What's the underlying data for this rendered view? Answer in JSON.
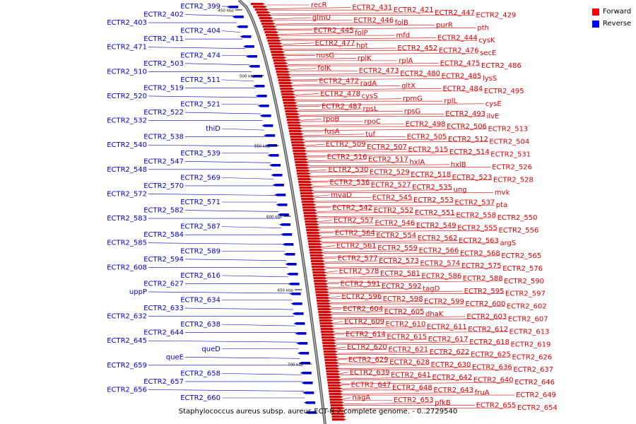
{
  "legend": [
    {
      "label": "Forward",
      "color": "#ff0000"
    },
    {
      "label": "Reverse",
      "color": "#0000ff"
    }
  ],
  "colors": {
    "forward": "#dd0000",
    "reverse": "#0000cc",
    "backbone": "#888888"
  },
  "caption": "Staphylococcus aureus subsp. aureus ECT-R 2 complete genome. - 0..2729540",
  "scale_marks": [
    "450 kbp",
    "500 kbp",
    "550 kbp",
    "600 kbp",
    "650 kbp",
    "700 kbp"
  ],
  "forward_labels": [
    "recR",
    "ECTR2_431",
    "ECTR2_421",
    "ECTR2_447",
    "ECTR2_429",
    "glmU",
    "ECTR2_446",
    "folB",
    "purR",
    "pth",
    "ECTR2_445",
    "folP",
    "mfd",
    "ECTR2_444",
    "cysK",
    "ECTR2_477",
    "hpt",
    "ECTR2_452",
    "ECTR2_476",
    "secE",
    "nusG",
    "rplK",
    "rplA",
    "ECTR2_475",
    "ECTR2_486",
    "folK",
    "ECTR2_473",
    "ECTR2_480",
    "ECTR2_485",
    "lysS",
    "ECTR2_472",
    "radA",
    "gltX",
    "ECTR2_484",
    "ECTR2_495",
    "ECTR2_478",
    "cysS",
    "rpmG",
    "rplL",
    "cysE",
    "ECTR2_487",
    "rpsL",
    "rpsG",
    "ECTR2_493",
    "ilvE",
    "rpoB",
    "rpoC",
    "ECTR2_498",
    "ECTR2_506",
    "ECTR2_513",
    "fusA",
    "tuf",
    "ECTR2_505",
    "ECTR2_512",
    "ECTR2_504",
    "ECTR2_509",
    "ECTR2_507",
    "ECTR2_515",
    "ECTR2_514",
    "ECTR2_531",
    "ECTR2_516",
    "ECTR2_517",
    "hxlA",
    "hxlB",
    "ECTR2_526",
    "ECTR2_530",
    "ECTR2_529",
    "ECTR2_518",
    "ECTR2_523",
    "ECTR2_528",
    "ECTR2_536",
    "ECTR2_527",
    "ECTR2_535",
    "ung",
    "mvk",
    "mvaD",
    "ECTR2_545",
    "ECTR2_553",
    "ECTR2_537",
    "pta",
    "ECTR2_542",
    "ECTR2_552",
    "ECTR2_551",
    "ECTR2_558",
    "ECTR2_550",
    "ECTR2_557",
    "ECTR2_546",
    "ECTR2_549",
    "ECTR2_555",
    "ECTR2_556",
    "ECTR2_564",
    "ECTR2_554",
    "ECTR2_562",
    "ECTR2_563",
    "argS",
    "ECTR2_561",
    "ECTR2_559",
    "ECTR2_566",
    "ECTR2_568",
    "ECTR2_565",
    "ECTR2_577",
    "ECTR2_573",
    "ECTR2_574",
    "ECTR2_575",
    "ECTR2_576",
    "ECTR2_578",
    "ECTR2_581",
    "ECTR2_586",
    "ECTR2_588",
    "ECTR2_590",
    "ECTR2_591",
    "ECTR2_592",
    "tagD",
    "ECTR2_595",
    "ECTR2_597",
    "ECTR2_596",
    "ECTR2_598",
    "ECTR2_599",
    "ECTR2_600",
    "ECTR2_602",
    "ECTR2_604",
    "ECTR2_605",
    "dhaK",
    "ECTR2_603",
    "ECTR2_607",
    "ECTR2_609",
    "ECTR2_610",
    "ECTR2_611",
    "ECTR2_612",
    "ECTR2_613",
    "ECTR2_614",
    "ECTR2_615",
    "ECTR2_617",
    "ECTR2_618",
    "ECTR2_619",
    "ECTR2_620",
    "ECTR2_621",
    "ECTR2_622",
    "ECTR2_625",
    "ECTR2_626",
    "ECTR2_629",
    "ECTR2_628",
    "ECTR2_630",
    "ECTR2_636",
    "ECTR2_637",
    "ECTR2_639",
    "ECTR2_641",
    "ECTR2_642",
    "ECTR2_640",
    "ECTR2_646",
    "ECTR2_647",
    "ECTR2_648",
    "ECTR2_643",
    "fruA",
    "ECTR2_649",
    "nagA",
    "ECTR2_653",
    "pfkB",
    "ECTR2_655",
    "ECTR2_654"
  ],
  "reverse_labels": [
    "ECTR2_399",
    "ECTR2_402",
    "ECTR2_403",
    "ECTR2_404",
    "ECTR2_411",
    "ECTR2_471",
    "ECTR2_474",
    "ECTR2_503",
    "ECTR2_510",
    "ECTR2_511",
    "ECTR2_519",
    "ECTR2_520",
    "ECTR2_521",
    "ECTR2_522",
    "ECTR2_532",
    "thiD",
    "ECTR2_538",
    "ECTR2_540",
    "ECTR2_539",
    "ECTR2_547",
    "ECTR2_548",
    "ECTR2_569",
    "ECTR2_570",
    "ECTR2_572",
    "ECTR2_571",
    "ECTR2_582",
    "ECTR2_583",
    "ECTR2_587",
    "ECTR2_584",
    "ECTR2_585",
    "ECTR2_589",
    "ECTR2_594",
    "ECTR2_608",
    "ECTR2_616",
    "ECTR2_627",
    "uppP",
    "ECTR2_634",
    "ECTR2_633",
    "ECTR2_632",
    "ECTR2_638",
    "ECTR2_644",
    "ECTR2_645",
    "queD",
    "queE",
    "ECTR2_659",
    "ECTR2_658",
    "ECTR2_657",
    "ECTR2_656",
    "ECTR2_660"
  ]
}
